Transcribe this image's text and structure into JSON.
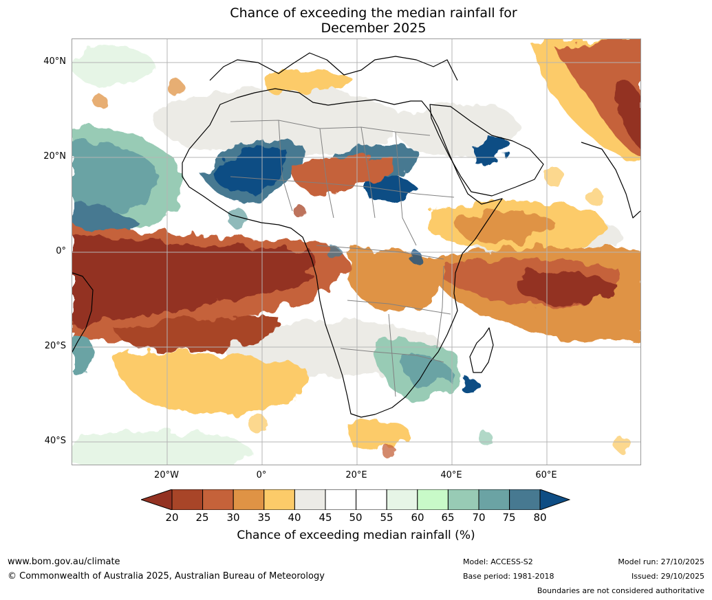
{
  "title": {
    "line1": "Chance of exceeding the median rainfall for",
    "line2": "December 2025"
  },
  "map": {
    "region": "Africa and surrounding oceans",
    "lat_ticks": [
      "40°N",
      "20°N",
      "0°",
      "20°S",
      "40°S"
    ],
    "lon_ticks": [
      "20°W",
      "0°",
      "20°E",
      "40°E",
      "60°E"
    ],
    "ocean_color": "#ffffff",
    "coastline_color": "#000000",
    "border_color": "#808080",
    "gridline_color": "#b4b4b4",
    "anomaly_regions": [
      {
        "area": "Sahel / West Africa",
        "class": "75-80+",
        "color": "#0e4d84"
      },
      {
        "area": "Arabian Peninsula east",
        "class": "75-80+",
        "color": "#0e4d84"
      },
      {
        "area": "Equatorial Atlantic",
        "class": "<20",
        "color": "#933222"
      },
      {
        "area": "Tropical Indian Ocean",
        "class": "<20",
        "color": "#933222"
      },
      {
        "area": "Southern Africa",
        "class": "60-75",
        "color": "#6ba3a4"
      }
    ]
  },
  "colorbar": {
    "ticks": [
      "20",
      "25",
      "30",
      "35",
      "40",
      "45",
      "50",
      "55",
      "60",
      "65",
      "70",
      "75",
      "80"
    ],
    "colors": [
      "#933222",
      "#a84528",
      "#c5623a",
      "#df9345",
      "#fccb69",
      "#ecebe6",
      "#ffffff",
      "#ffffff",
      "#e6f5e6",
      "#c8fac8",
      "#98cbb5",
      "#6ba3a4",
      "#477991",
      "#0e4d84"
    ],
    "label": "Chance of exceeding median rainfall (%)"
  },
  "footer": {
    "website": "www.bom.gov.au/climate",
    "copyright": "© Commonwealth of Australia 2025, Australian Bureau of Meteorology",
    "model": "Model: ACCESS-S2",
    "base_period": "Base period: 1981-2018",
    "model_run": "Model run: 27/10/2025",
    "issued": "Issued: 29/10/2025",
    "disclaimer": "Boundaries are not considered authoritative"
  }
}
